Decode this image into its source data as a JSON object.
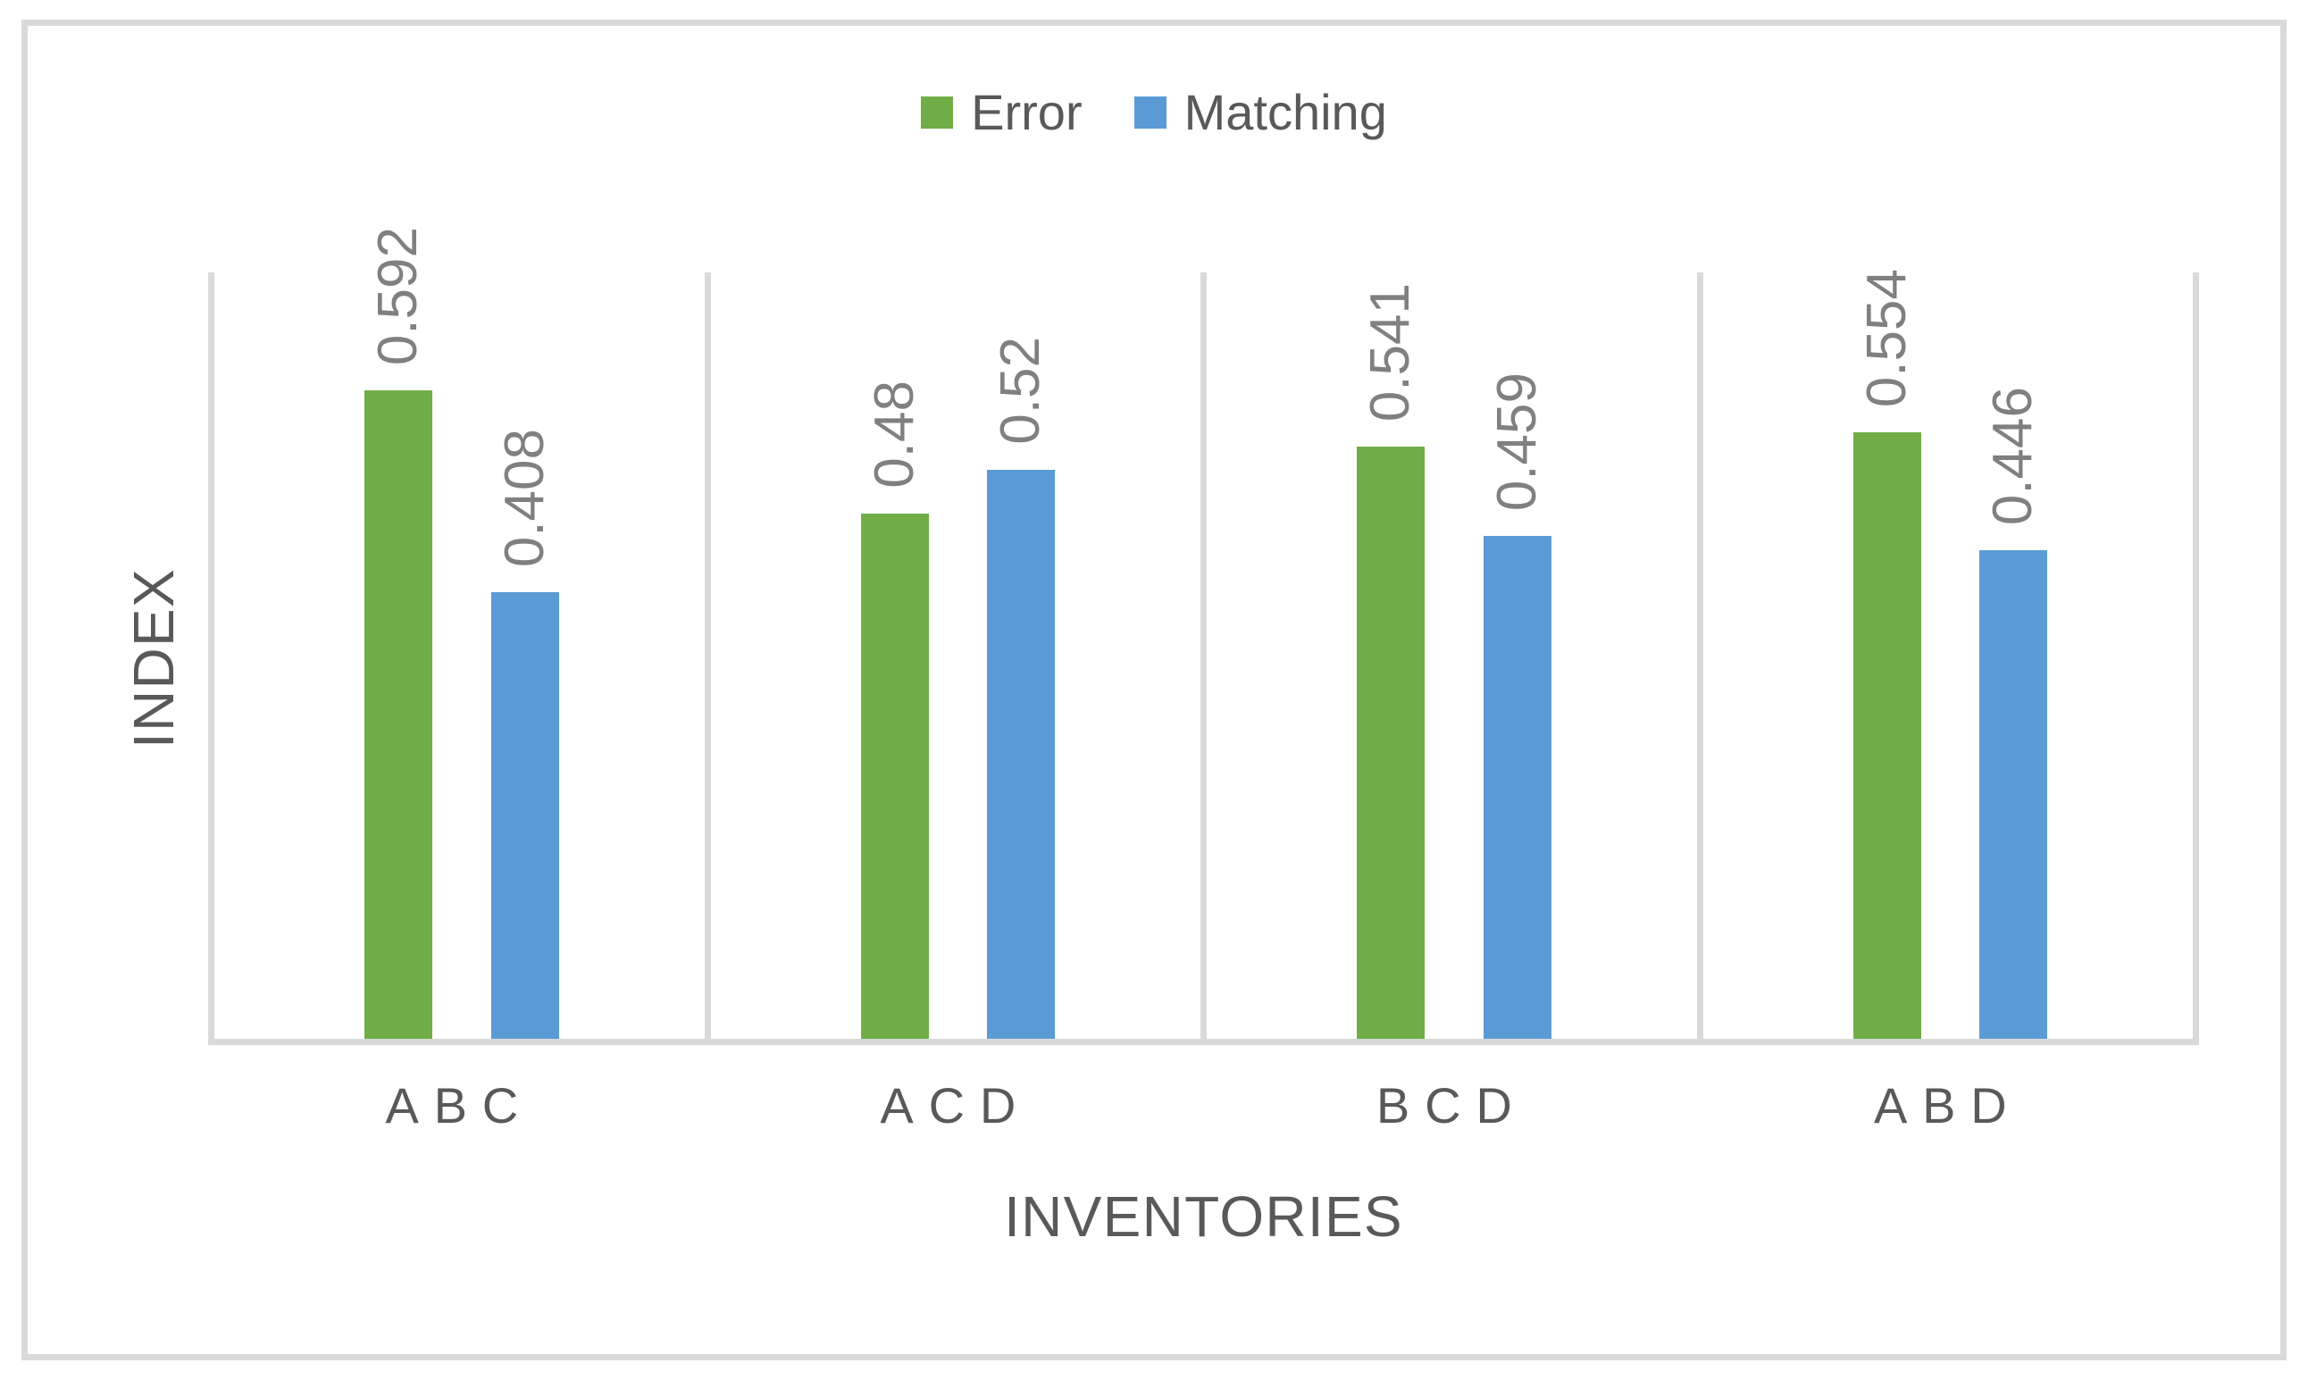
{
  "chart_data": {
    "type": "bar",
    "categories": [
      "ABC",
      "ACD",
      "BCD",
      "ABD"
    ],
    "series": [
      {
        "name": "Error",
        "color": "#70AD47",
        "values": [
          0.592,
          0.48,
          0.541,
          0.554
        ]
      },
      {
        "name": "Matching",
        "color": "#5B9BD5",
        "values": [
          0.408,
          0.52,
          0.459,
          0.446
        ]
      }
    ],
    "title": "",
    "xlabel": "INVENTORIES",
    "ylabel": "INDEX",
    "ylim": [
      0,
      0.7
    ],
    "legend_position": "top-center",
    "grid": "vertical-category-separators",
    "data_labels": {
      "rotation": -90,
      "position": "outside-end",
      "color": "#808080"
    },
    "axis_line_color": "#D9D9D9",
    "text_color": "#595959"
  }
}
